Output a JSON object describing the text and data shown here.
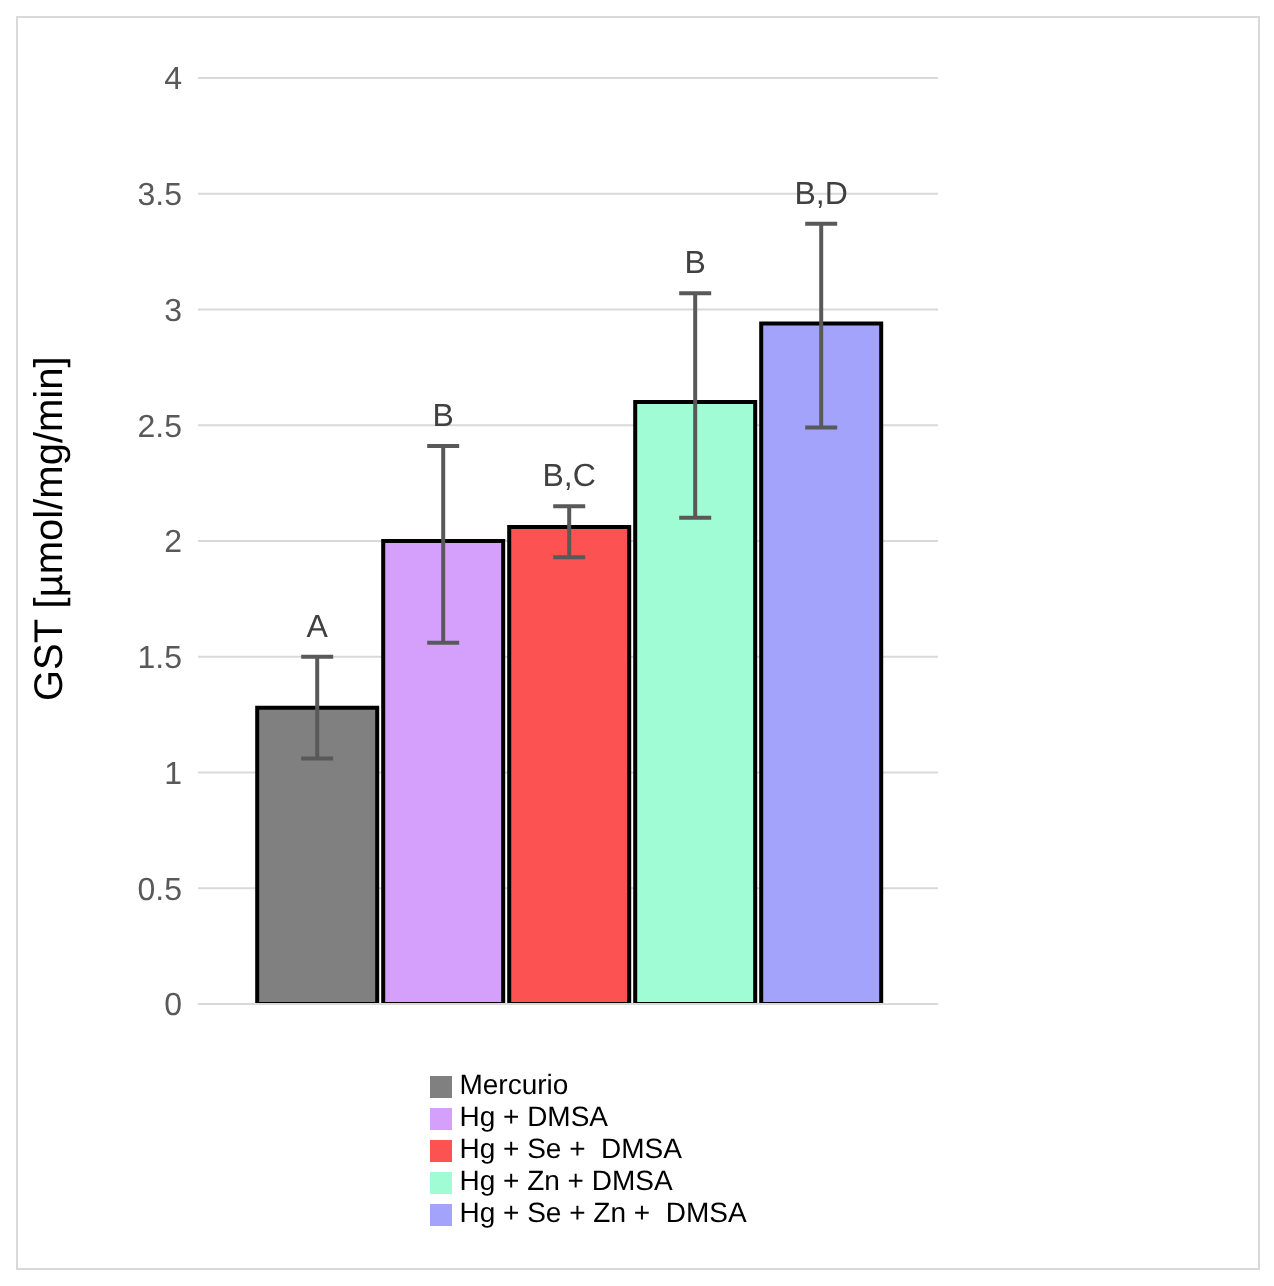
{
  "chart_data": {
    "type": "bar",
    "ylabel": "GST [µmol/mg/min]",
    "categories": [
      null
    ],
    "series": [
      {
        "name": "Mercurio",
        "color": "#808080",
        "values": [
          1.28
        ],
        "errors": [
          [
            1.06,
            1.5
          ]
        ]
      },
      {
        "name": "Hg + DMSA",
        "color": "#d59ffc",
        "values": [
          2.0
        ],
        "errors": [
          [
            1.56,
            2.41
          ]
        ]
      },
      {
        "name": "Hg + Se +  DMSA",
        "color": "#fc5252",
        "values": [
          2.06
        ],
        "errors": [
          [
            1.93,
            2.15
          ]
        ]
      },
      {
        "name": "Hg + Zn + DMSA",
        "color": "#9ffcd4",
        "values": [
          2.6
        ],
        "errors": [
          [
            2.1,
            3.07
          ]
        ]
      },
      {
        "name": "Hg + Se + Zn +  DMSA",
        "color": "#a3a3fc",
        "values": [
          2.94
        ],
        "errors": [
          [
            2.49,
            3.37
          ]
        ]
      }
    ],
    "annotations": [
      {
        "text": "A",
        "y": 1.5
      },
      {
        "text": "B",
        "y": 2.41
      },
      {
        "text": "B,C",
        "y": 2.15
      },
      {
        "text": "B",
        "y": 3.07
      },
      {
        "text": "B,D",
        "y": 3.37
      }
    ],
    "ylim": [
      0,
      4
    ],
    "yticks": [
      0,
      0.5,
      1,
      1.5,
      2,
      2.5,
      3,
      3.5,
      4
    ],
    "grid": "y",
    "legend": "bottom"
  }
}
